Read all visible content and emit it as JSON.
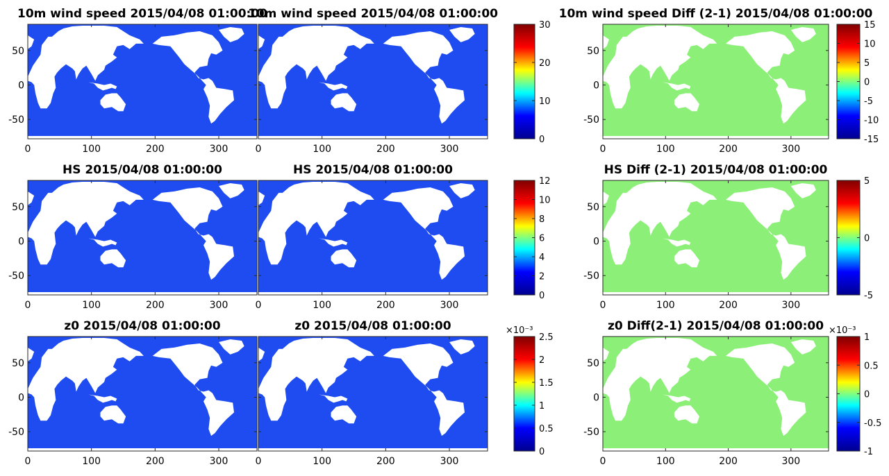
{
  "figure": {
    "rows": [
      {
        "variable": "10m wind speed",
        "panels": [
          {
            "title": "10m wind speed 2015/04/08 01:00:00",
            "kind": "field"
          },
          {
            "title": "10m wind speed 2015/04/08 01:00:00",
            "kind": "field"
          },
          {
            "title": "10m wind speed Diff (2-1) 2015/04/08 01:00:00",
            "kind": "diff"
          }
        ],
        "colorbar_field": {
          "ticks": [
            "0",
            "10",
            "20",
            "30"
          ],
          "values": [
            0,
            10,
            20,
            30
          ],
          "range": [
            0,
            30
          ],
          "multiplier": ""
        },
        "colorbar_diff": {
          "ticks": [
            "-15",
            "-10",
            "-5",
            "0",
            "5",
            "10",
            "15"
          ],
          "values": [
            -15,
            -10,
            -5,
            0,
            5,
            10,
            15
          ],
          "range": [
            -15,
            15
          ],
          "multiplier": ""
        }
      },
      {
        "variable": "HS",
        "panels": [
          {
            "title": "HS 2015/04/08 01:00:00",
            "kind": "field"
          },
          {
            "title": "HS 2015/04/08 01:00:00",
            "kind": "field"
          },
          {
            "title": "HS Diff (2-1) 2015/04/08 01:00:00",
            "kind": "diff"
          }
        ],
        "colorbar_field": {
          "ticks": [
            "0",
            "2",
            "4",
            "6",
            "8",
            "10",
            "12"
          ],
          "values": [
            0,
            2,
            4,
            6,
            8,
            10,
            12
          ],
          "range": [
            0,
            12
          ],
          "multiplier": ""
        },
        "colorbar_diff": {
          "ticks": [
            "-5",
            "0",
            "5"
          ],
          "values": [
            -5,
            0,
            5
          ],
          "range": [
            -5,
            5
          ],
          "multiplier": ""
        }
      },
      {
        "variable": "z0",
        "panels": [
          {
            "title": "z0 2015/04/08 01:00:00",
            "kind": "field"
          },
          {
            "title": "z0 2015/04/08 01:00:00",
            "kind": "field"
          },
          {
            "title": "z0 Diff(2-1) 2015/04/08 01:00:00",
            "kind": "diff"
          }
        ],
        "colorbar_field": {
          "ticks": [
            "0",
            "0.5",
            "1",
            "1.5",
            "2",
            "2.5"
          ],
          "values": [
            0,
            0.5,
            1,
            1.5,
            2,
            2.5
          ],
          "range": [
            0,
            2.5
          ],
          "multiplier": "×10⁻³"
        },
        "colorbar_diff": {
          "ticks": [
            "-1",
            "-0.5",
            "0",
            "0.5",
            "1"
          ],
          "values": [
            -1,
            -0.5,
            0,
            0.5,
            1
          ],
          "range": [
            -1,
            1
          ],
          "multiplier": "×10⁻³"
        }
      }
    ]
  },
  "chart_data": {
    "type": "heatmap",
    "description_free": true,
    "x_ticks": [
      "0",
      "100",
      "200",
      "300"
    ],
    "x_tick_values": [
      0,
      100,
      200,
      300
    ],
    "xlim": [
      0,
      360
    ],
    "y_ticks": [
      "50",
      "0",
      "-50"
    ],
    "y_tick_values": [
      50,
      0,
      -50
    ],
    "ylim": [
      -78,
      88
    ],
    "colormap": "jet",
    "land_color": "#ffffff"
  },
  "colors": {
    "jet_stops": [
      "#00008f",
      "#0000ff",
      "#00ffff",
      "#ffff00",
      "#ff0000",
      "#800000"
    ],
    "field_background": "#1e4cf0",
    "diff_background": "#8cf078",
    "land": "#ffffff"
  }
}
